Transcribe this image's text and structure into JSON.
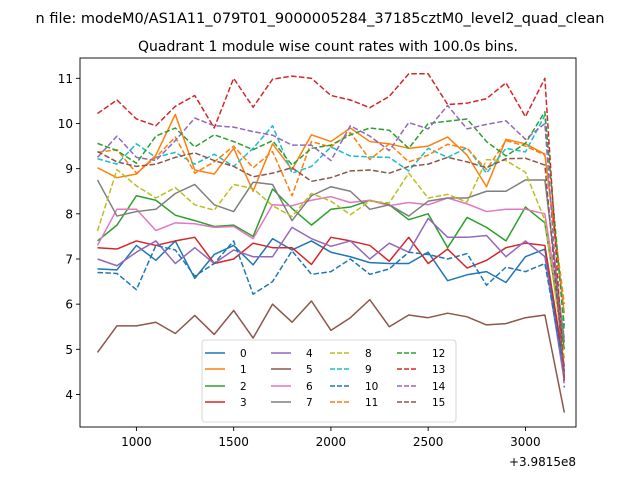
{
  "figure": {
    "suptitle": "n file: modeM0/AS1A11_079T01_9000005284_37185cztM0_level2_quad_clean",
    "offset_text": "+3.9815e8"
  },
  "chart_data": {
    "type": "line",
    "title": "Quadrant 1 module wise count rates with 100.0s bins.",
    "xlabel": "",
    "ylabel": "",
    "xlim": [
      710,
      3260
    ],
    "ylim": [
      3.28,
      11.45
    ],
    "xticks": [
      1000,
      1500,
      2000,
      2500,
      3000
    ],
    "yticks": [
      4,
      5,
      6,
      7,
      8,
      9,
      10,
      11
    ],
    "grid": false,
    "legend": {
      "placement": "lower center",
      "columns": 4
    },
    "x": [
      800,
      900,
      1000,
      1100,
      1200,
      1300,
      1400,
      1500,
      1600,
      1700,
      1800,
      1900,
      2000,
      2100,
      2200,
      2300,
      2400,
      2500,
      2600,
      2700,
      2800,
      2900,
      3000,
      3100,
      3200
    ],
    "series": [
      {
        "name": "0",
        "color": "#1f77b4",
        "dash": "solid",
        "values": [
          6.78,
          6.76,
          7.3,
          6.97,
          7.4,
          6.57,
          7.1,
          7.3,
          6.87,
          7.45,
          7.2,
          7.4,
          7.15,
          7.05,
          6.92,
          6.9,
          6.9,
          7.15,
          6.52,
          6.65,
          6.72,
          6.48,
          7.05,
          7.22,
          4.5
        ]
      },
      {
        "name": "1",
        "color": "#ff7f0e",
        "dash": "solid",
        "values": [
          9.02,
          8.8,
          8.88,
          9.3,
          10.2,
          8.97,
          8.88,
          9.45,
          8.5,
          9.55,
          8.98,
          9.75,
          9.6,
          9.9,
          9.6,
          9.55,
          9.45,
          9.5,
          9.7,
          9.3,
          8.6,
          9.65,
          9.55,
          9.32,
          5.8
        ]
      },
      {
        "name": "2",
        "color": "#2ca02c",
        "dash": "solid",
        "values": [
          7.4,
          7.75,
          8.4,
          8.3,
          7.97,
          7.85,
          7.72,
          7.75,
          7.5,
          8.55,
          8.12,
          7.75,
          8.1,
          8.15,
          8.3,
          8.2,
          7.87,
          8.0,
          7.25,
          7.92,
          7.7,
          7.4,
          8.15,
          7.8,
          5.0
        ]
      },
      {
        "name": "3",
        "color": "#d62728",
        "dash": "solid",
        "values": [
          7.25,
          7.22,
          7.4,
          7.3,
          7.4,
          7.48,
          6.9,
          7.0,
          7.35,
          7.25,
          7.25,
          6.88,
          7.48,
          7.4,
          7.3,
          6.95,
          7.48,
          6.9,
          7.22,
          6.8,
          6.97,
          7.25,
          7.35,
          7.3,
          4.62
        ]
      },
      {
        "name": "4",
        "color": "#9467bd",
        "dash": "solid",
        "values": [
          7.0,
          6.85,
          7.15,
          7.4,
          6.9,
          7.25,
          6.9,
          7.2,
          7.05,
          7.05,
          7.7,
          7.45,
          7.28,
          7.4,
          7.0,
          7.35,
          7.15,
          7.9,
          7.48,
          7.48,
          7.52,
          7.05,
          7.4,
          7.05,
          4.3
        ]
      },
      {
        "name": "5",
        "color": "#8c564b",
        "dash": "solid",
        "values": [
          4.93,
          5.52,
          5.52,
          5.6,
          5.35,
          5.75,
          5.33,
          5.86,
          5.25,
          6.0,
          5.6,
          6.07,
          5.42,
          5.7,
          6.1,
          5.5,
          5.76,
          5.7,
          5.8,
          5.72,
          5.54,
          5.57,
          5.7,
          5.76,
          3.6
        ]
      },
      {
        "name": "6",
        "color": "#e377c2",
        "dash": "solid",
        "values": [
          7.3,
          8.1,
          8.1,
          7.63,
          7.8,
          7.78,
          7.7,
          7.72,
          7.45,
          8.2,
          8.18,
          8.3,
          8.38,
          8.25,
          8.3,
          8.18,
          8.25,
          8.2,
          8.35,
          8.22,
          8.05,
          8.1,
          8.1,
          8.0,
          5.25
        ]
      },
      {
        "name": "7",
        "color": "#7f7f7f",
        "dash": "solid",
        "values": [
          8.75,
          7.95,
          8.05,
          8.1,
          8.45,
          8.65,
          8.2,
          8.05,
          8.7,
          8.65,
          7.85,
          8.4,
          8.6,
          8.5,
          8.1,
          8.2,
          7.95,
          8.28,
          8.35,
          8.35,
          8.5,
          8.5,
          8.75,
          8.75,
          5.15
        ]
      },
      {
        "name": "8",
        "color": "#bcbd22",
        "dash": "dashed",
        "values": [
          7.62,
          8.98,
          8.62,
          8.35,
          8.58,
          8.2,
          8.08,
          8.65,
          8.56,
          8.18,
          7.94,
          8.45,
          8.28,
          7.98,
          8.28,
          8.24,
          8.9,
          8.35,
          8.43,
          8.26,
          9.2,
          9.18,
          8.92,
          7.86,
          4.8
        ]
      },
      {
        "name": "9",
        "color": "#17becf",
        "dash": "dashed",
        "values": [
          9.22,
          9.1,
          9.55,
          9.25,
          9.36,
          9.1,
          9.32,
          9.05,
          9.45,
          9.95,
          8.9,
          9.05,
          9.48,
          9.28,
          9.26,
          9.25,
          8.95,
          9.45,
          9.25,
          9.46,
          8.9,
          9.45,
          9.37,
          10.18,
          5.52
        ]
      },
      {
        "name": "10",
        "color": "#1f77b4",
        "dash": "dashed",
        "values": [
          6.7,
          6.68,
          6.32,
          7.3,
          7.2,
          6.62,
          6.9,
          7.4,
          6.22,
          6.5,
          7.18,
          6.66,
          6.72,
          7.0,
          6.66,
          6.78,
          7.15,
          7.1,
          7.0,
          7.12,
          6.42,
          6.82,
          6.72,
          6.9,
          4.52
        ]
      },
      {
        "name": "11",
        "color": "#ff7f0e",
        "dash": "dashed",
        "values": [
          9.36,
          9.42,
          8.9,
          9.25,
          9.7,
          8.9,
          9.15,
          9.5,
          9.02,
          9.38,
          8.4,
          9.6,
          9.48,
          9.8,
          9.2,
          9.55,
          9.15,
          9.3,
          9.54,
          9.45,
          8.98,
          9.62,
          9.5,
          9.3,
          6.0
        ]
      },
      {
        "name": "12",
        "color": "#2ca02c",
        "dash": "dashed",
        "values": [
          9.56,
          9.4,
          9.12,
          9.72,
          9.9,
          9.48,
          9.75,
          9.6,
          9.42,
          9.62,
          9.08,
          9.45,
          9.52,
          9.75,
          9.9,
          9.85,
          9.45,
          10.0,
          10.05,
          10.1,
          9.6,
          9.28,
          9.56,
          10.26,
          5.4
        ]
      },
      {
        "name": "13",
        "color": "#d62728",
        "dash": "dashed",
        "values": [
          10.22,
          10.52,
          10.1,
          9.95,
          10.38,
          10.62,
          9.9,
          11.0,
          10.36,
          10.98,
          11.05,
          11.0,
          10.62,
          10.52,
          10.35,
          10.6,
          11.1,
          11.1,
          10.42,
          10.45,
          10.55,
          10.9,
          10.15,
          11.0,
          4.3
        ]
      },
      {
        "name": "14",
        "color": "#9467bd",
        "dash": "dashed",
        "values": [
          9.25,
          9.72,
          9.25,
          9.18,
          9.62,
          10.12,
          9.95,
          9.92,
          9.82,
          9.74,
          9.52,
          9.52,
          9.18,
          9.95,
          9.72,
          9.4,
          10.02,
          9.88,
          10.4,
          9.88,
          9.98,
          10.06,
          9.65,
          10.0,
          4.15
        ]
      },
      {
        "name": "15",
        "color": "#8c564b",
        "dash": "dashed",
        "values": [
          9.38,
          9.15,
          9.05,
          9.1,
          9.25,
          9.35,
          9.18,
          9.05,
          8.82,
          8.9,
          9.02,
          8.72,
          8.8,
          8.95,
          8.97,
          8.9,
          9.05,
          9.1,
          9.25,
          9.15,
          9.02,
          9.22,
          9.23,
          9.08,
          4.4
        ]
      }
    ]
  }
}
